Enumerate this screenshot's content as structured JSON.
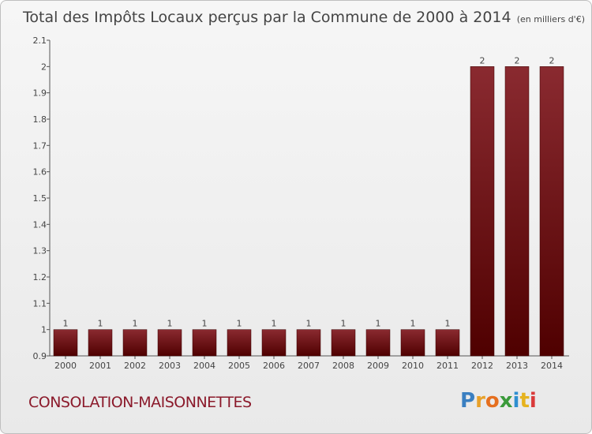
{
  "chart_data": {
    "type": "bar",
    "title": "Total des Impôts Locaux perçus par la Commune de 2000 à 2014",
    "unit": "(en milliers d'€)",
    "categories": [
      "2000",
      "2001",
      "2002",
      "2003",
      "2004",
      "2005",
      "2006",
      "2007",
      "2008",
      "2009",
      "2010",
      "2011",
      "2012",
      "2013",
      "2014"
    ],
    "values": [
      1,
      1,
      1,
      1,
      1,
      1,
      1,
      1,
      1,
      1,
      1,
      1,
      2,
      2,
      2
    ],
    "value_labels": [
      "1",
      "1",
      "1",
      "1",
      "1",
      "1",
      "1",
      "1",
      "1",
      "1",
      "1",
      "1",
      "2",
      "2",
      "2"
    ],
    "yticks": [
      "0.9",
      "1",
      "1.1",
      "1.2",
      "1.3",
      "1.4",
      "1.5",
      "1.6",
      "1.7",
      "1.8",
      "1.9",
      "2",
      "2.1"
    ],
    "ylim": [
      0.9,
      2.1
    ],
    "bar_color": "#7a1218",
    "grid": false
  },
  "commune": "CONSOLATION-MAISONNETTES",
  "logo": {
    "letters": [
      "P",
      "r",
      "o",
      "x",
      "i",
      "t",
      "i"
    ],
    "colors": [
      "#3a7fc1",
      "#e8a12a",
      "#e56f1f",
      "#3a9a3a",
      "#2f8fd0",
      "#e6b31f",
      "#d93a3a"
    ]
  }
}
